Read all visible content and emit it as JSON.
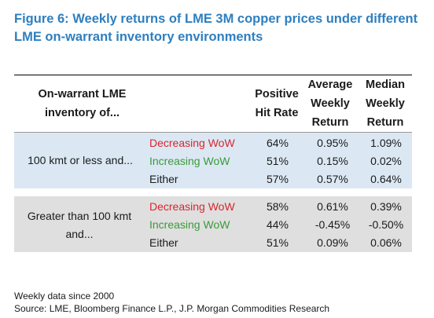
{
  "title": "Figure 6: Weekly returns of LME 3M copper prices under different LME on-warrant inventory environments",
  "colors": {
    "title": "#2e7fbf",
    "decreasing": "#d9262c",
    "increasing": "#3a9a3a",
    "either": "#1a1a1a",
    "group1_bg": "#dbe8f4",
    "group2_bg": "#dfdfdf"
  },
  "headers": {
    "inventory": "On-warrant LME inventory of...",
    "hit_rate": "Positive Hit Rate",
    "avg": "Average Weekly Return",
    "median": "Median Weekly Return"
  },
  "groups": [
    {
      "label": "100 kmt or less and...",
      "rows": [
        {
          "condition": "Decreasing WoW",
          "hit_rate": "64%",
          "avg": "0.95%",
          "median": "1.09%"
        },
        {
          "condition": "Increasing WoW",
          "hit_rate": "51%",
          "avg": "0.15%",
          "median": "0.02%"
        },
        {
          "condition": "Either",
          "hit_rate": "57%",
          "avg": "0.57%",
          "median": "0.64%"
        }
      ]
    },
    {
      "label": "Greater than 100 kmt and...",
      "rows": [
        {
          "condition": "Decreasing WoW",
          "hit_rate": "58%",
          "avg": "0.61%",
          "median": "0.39%"
        },
        {
          "condition": "Increasing WoW",
          "hit_rate": "44%",
          "avg": "-0.45%",
          "median": "-0.50%"
        },
        {
          "condition": "Either",
          "hit_rate": "51%",
          "avg": "0.09%",
          "median": "0.06%"
        }
      ]
    }
  ],
  "footnotes": {
    "note": "Weekly data since 2000",
    "source": "Source: LME, Bloomberg Finance L.P., J.P. Morgan Commodities Research"
  }
}
